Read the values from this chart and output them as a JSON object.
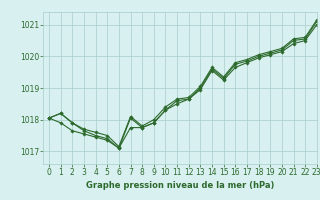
{
  "title": "Graphe pression niveau de la mer (hPa)",
  "background_color": "#d8f0f0",
  "line_color": "#2d6a2d",
  "grid_color": "#aacccc",
  "xlim": [
    -0.5,
    23
  ],
  "ylim": [
    1016.6,
    1021.4
  ],
  "yticks": [
    1017,
    1018,
    1019,
    1020,
    1021
  ],
  "xticks": [
    0,
    1,
    2,
    3,
    4,
    5,
    6,
    7,
    8,
    9,
    10,
    11,
    12,
    13,
    14,
    15,
    16,
    17,
    18,
    19,
    20,
    21,
    22,
    23
  ],
  "series": [
    [
      1018.05,
      1018.2,
      1017.9,
      1017.65,
      1017.5,
      1017.4,
      1017.1,
      1018.05,
      1017.75,
      1017.9,
      1018.3,
      1018.6,
      1018.65,
      1019.0,
      1019.6,
      1019.3,
      1019.75,
      1019.85,
      1020.0,
      1020.1,
      1020.2,
      1020.5,
      1020.55,
      1021.1
    ],
    [
      1018.05,
      1017.9,
      1017.65,
      1017.55,
      1017.45,
      1017.35,
      1017.1,
      1017.75,
      1017.75,
      1017.9,
      1018.3,
      1018.5,
      1018.65,
      1018.95,
      1019.55,
      1019.25,
      1019.65,
      1019.8,
      1019.95,
      1020.05,
      1020.15,
      1020.4,
      1020.5,
      1021.0
    ],
    [
      1018.05,
      1018.2,
      1017.9,
      1017.7,
      1017.6,
      1017.5,
      1017.15,
      1018.1,
      1017.8,
      1018.0,
      1018.4,
      1018.65,
      1018.7,
      1019.05,
      1019.65,
      1019.35,
      1019.8,
      1019.9,
      1020.05,
      1020.15,
      1020.25,
      1020.55,
      1020.6,
      1021.15
    ]
  ],
  "title_fontsize": 6.0,
  "tick_fontsize": 5.5
}
